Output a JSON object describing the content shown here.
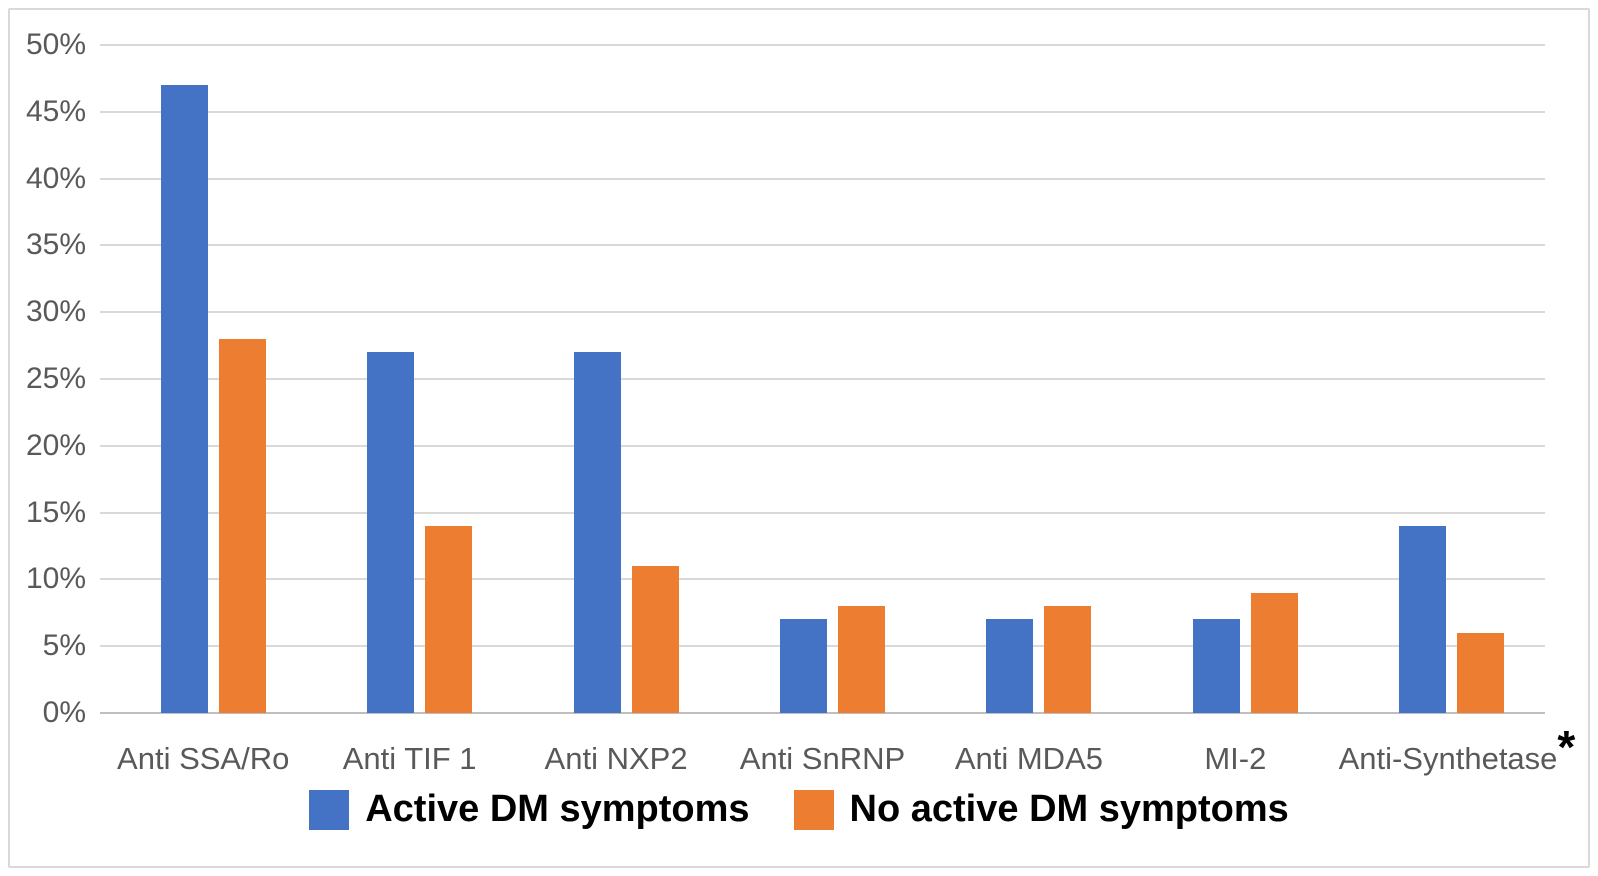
{
  "chart_data": {
    "type": "bar",
    "title": "",
    "categories": [
      "Anti SSA/Ro",
      "Anti TIF 1",
      "Anti NXP2",
      "Anti SnRNP",
      "Anti MDA5",
      "MI-2",
      "Anti-Synthetase"
    ],
    "category_markers": [
      "",
      "",
      "",
      "",
      "",
      "",
      "*"
    ],
    "series": [
      {
        "name": "Active DM symptoms",
        "color": "#4472C4",
        "values": [
          47,
          27,
          27,
          7,
          7,
          7,
          14
        ]
      },
      {
        "name": "No active DM symptoms",
        "color": "#ED7D31",
        "values": [
          28,
          14,
          11,
          8,
          8,
          9,
          6
        ]
      }
    ],
    "xlabel": "",
    "ylabel": "",
    "ylim": [
      0,
      50
    ],
    "ytick_step": 5,
    "ytick_labels": [
      "0%",
      "5%",
      "10%",
      "15%",
      "20%",
      "25%",
      "30%",
      "35%",
      "40%",
      "45%",
      "50%"
    ],
    "grid": true,
    "legend_position": "bottom",
    "colors": {
      "grid": "#D9D9D9",
      "axis": "#BFBFBF",
      "tick_text": "#595959",
      "legend_text": "#000000",
      "background": "#FFFFFF",
      "border": "#D9D9D9"
    }
  }
}
